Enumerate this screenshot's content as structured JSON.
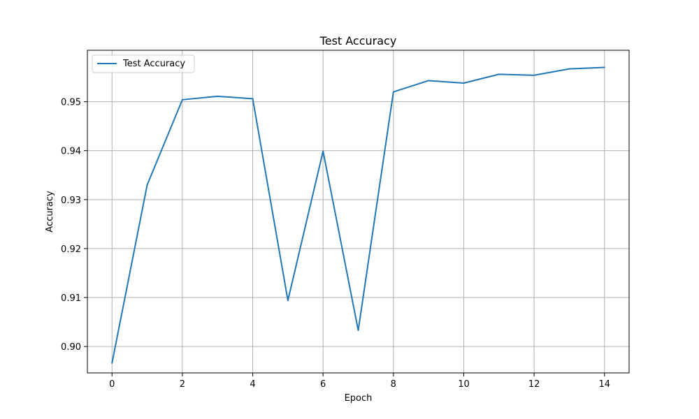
{
  "chart_data": {
    "type": "line",
    "title": "Test Accuracy",
    "xlabel": "Epoch",
    "ylabel": "Accuracy",
    "xlim": [
      -0.7,
      14.7
    ],
    "ylim": [
      0.8946,
      0.9605
    ],
    "xticks": [
      0,
      2,
      4,
      6,
      8,
      10,
      12,
      14
    ],
    "yticks": [
      0.9,
      0.91,
      0.92,
      0.93,
      0.94,
      0.95
    ],
    "ytick_labels": [
      "0.90",
      "0.91",
      "0.92",
      "0.93",
      "0.94",
      "0.95"
    ],
    "grid": true,
    "legend": "upper left",
    "series": [
      {
        "name": "Test Accuracy",
        "color": "#1f77b4",
        "x": [
          0,
          1,
          2,
          3,
          4,
          5,
          6,
          7,
          8,
          9,
          10,
          11,
          12,
          13,
          14
        ],
        "y": [
          0.8966,
          0.933,
          0.9504,
          0.9511,
          0.9506,
          0.9094,
          0.9399,
          0.9033,
          0.952,
          0.9543,
          0.9538,
          0.9556,
          0.9554,
          0.9567,
          0.957
        ]
      }
    ]
  }
}
